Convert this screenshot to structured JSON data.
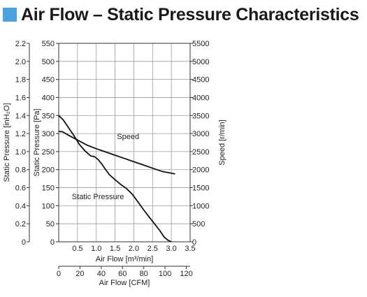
{
  "title": "Air Flow – Static Pressure Characteristics",
  "chart_data": {
    "type": "line",
    "title": "Air Flow – Static Pressure Characteristics",
    "xlabel": "Air Flow [m³/min]",
    "xlabel_secondary": "Air Flow [CFM]",
    "ylabel_left_outer": "Static Pressure [inH₂O]",
    "ylabel_left": "Static Pressure [Pa]",
    "ylabel_right": "Speed [r/min]",
    "xlim": [
      0,
      3.5
    ],
    "ylim_pa": [
      0,
      550
    ],
    "ylim_inh2o": [
      0,
      2.2
    ],
    "ylim_speed": [
      0,
      5500
    ],
    "xlim_cfm": [
      0,
      123.6
    ],
    "grid": true,
    "x_ticks": [
      {
        "value": 0.5,
        "label": "0.5"
      },
      {
        "value": 1.0,
        "label": "1.0"
      },
      {
        "value": 1.5,
        "label": "1.5"
      },
      {
        "value": 2.0,
        "label": "2.0"
      },
      {
        "value": 2.5,
        "label": "2.5"
      },
      {
        "value": 3.0,
        "label": "3.0"
      },
      {
        "value": 3.5,
        "label": "3.5"
      }
    ],
    "pa_ticks": [
      {
        "value": 0,
        "label": "0"
      },
      {
        "value": 50,
        "label": "50"
      },
      {
        "value": 100,
        "label": "100"
      },
      {
        "value": 150,
        "label": "150"
      },
      {
        "value": 200,
        "label": "200"
      },
      {
        "value": 250,
        "label": "250"
      },
      {
        "value": 300,
        "label": "300"
      },
      {
        "value": 350,
        "label": "350"
      },
      {
        "value": 400,
        "label": "400"
      },
      {
        "value": 450,
        "label": "450"
      },
      {
        "value": 500,
        "label": "500"
      },
      {
        "value": 550,
        "label": "550"
      }
    ],
    "inh2o_ticks": [
      {
        "value": 0,
        "label": "0"
      },
      {
        "value": 0.2,
        "label": "0.2"
      },
      {
        "value": 0.4,
        "label": "0.4"
      },
      {
        "value": 0.6,
        "label": "0.6"
      },
      {
        "value": 0.8,
        "label": "0.8"
      },
      {
        "value": 1.0,
        "label": "1.0"
      },
      {
        "value": 1.2,
        "label": "1.2"
      },
      {
        "value": 1.4,
        "label": "1.4"
      },
      {
        "value": 1.6,
        "label": "1.6"
      },
      {
        "value": 1.8,
        "label": "1.8"
      },
      {
        "value": 2.0,
        "label": "2.0"
      },
      {
        "value": 2.2,
        "label": "2.2"
      }
    ],
    "speed_ticks": [
      {
        "value": 0,
        "label": "0"
      },
      {
        "value": 500,
        "label": "500"
      },
      {
        "value": 1000,
        "label": "1000"
      },
      {
        "value": 1500,
        "label": "1500"
      },
      {
        "value": 2000,
        "label": "2000"
      },
      {
        "value": 2500,
        "label": "2500"
      },
      {
        "value": 3000,
        "label": "3000"
      },
      {
        "value": 3500,
        "label": "3500"
      },
      {
        "value": 4000,
        "label": "4000"
      },
      {
        "value": 4500,
        "label": "4500"
      },
      {
        "value": 5000,
        "label": "5000"
      },
      {
        "value": 5500,
        "label": "5500"
      }
    ],
    "cfm_ticks": [
      {
        "value": 0,
        "label": "0"
      },
      {
        "value": 20,
        "label": "20"
      },
      {
        "value": 40,
        "label": "40"
      },
      {
        "value": 60,
        "label": "60"
      },
      {
        "value": 80,
        "label": "80"
      },
      {
        "value": 100,
        "label": "100"
      },
      {
        "value": 120,
        "label": "120"
      }
    ],
    "series": [
      {
        "name": "Static Pressure",
        "axis": "pa",
        "x": [
          0,
          0.12,
          0.25,
          0.4,
          0.55,
          0.7,
          0.85,
          0.95,
          1.05,
          1.15,
          1.25,
          1.35,
          1.5,
          1.65,
          1.8,
          1.95,
          2.1,
          2.25,
          2.4,
          2.55,
          2.7,
          2.8,
          2.9,
          3.0
        ],
        "values": [
          350,
          338,
          318,
          295,
          270,
          252,
          238,
          236,
          228,
          215,
          200,
          186,
          172,
          159,
          148,
          133,
          112,
          90,
          70,
          50,
          30,
          14,
          5,
          0
        ]
      },
      {
        "name": "Speed",
        "axis": "speed",
        "x": [
          0,
          0.1,
          0.25,
          0.5,
          0.75,
          1.0,
          1.25,
          1.5,
          1.75,
          2.0,
          2.25,
          2.5,
          2.75,
          3.0,
          3.1
        ],
        "values": [
          3060,
          3050,
          2960,
          2820,
          2680,
          2580,
          2490,
          2400,
          2310,
          2220,
          2130,
          2040,
          1950,
          1900,
          1880
        ]
      }
    ],
    "annotations": [
      {
        "text": "Speed",
        "series": "Speed"
      },
      {
        "text": "Static Pressure",
        "series": "Static Pressure"
      }
    ]
  }
}
